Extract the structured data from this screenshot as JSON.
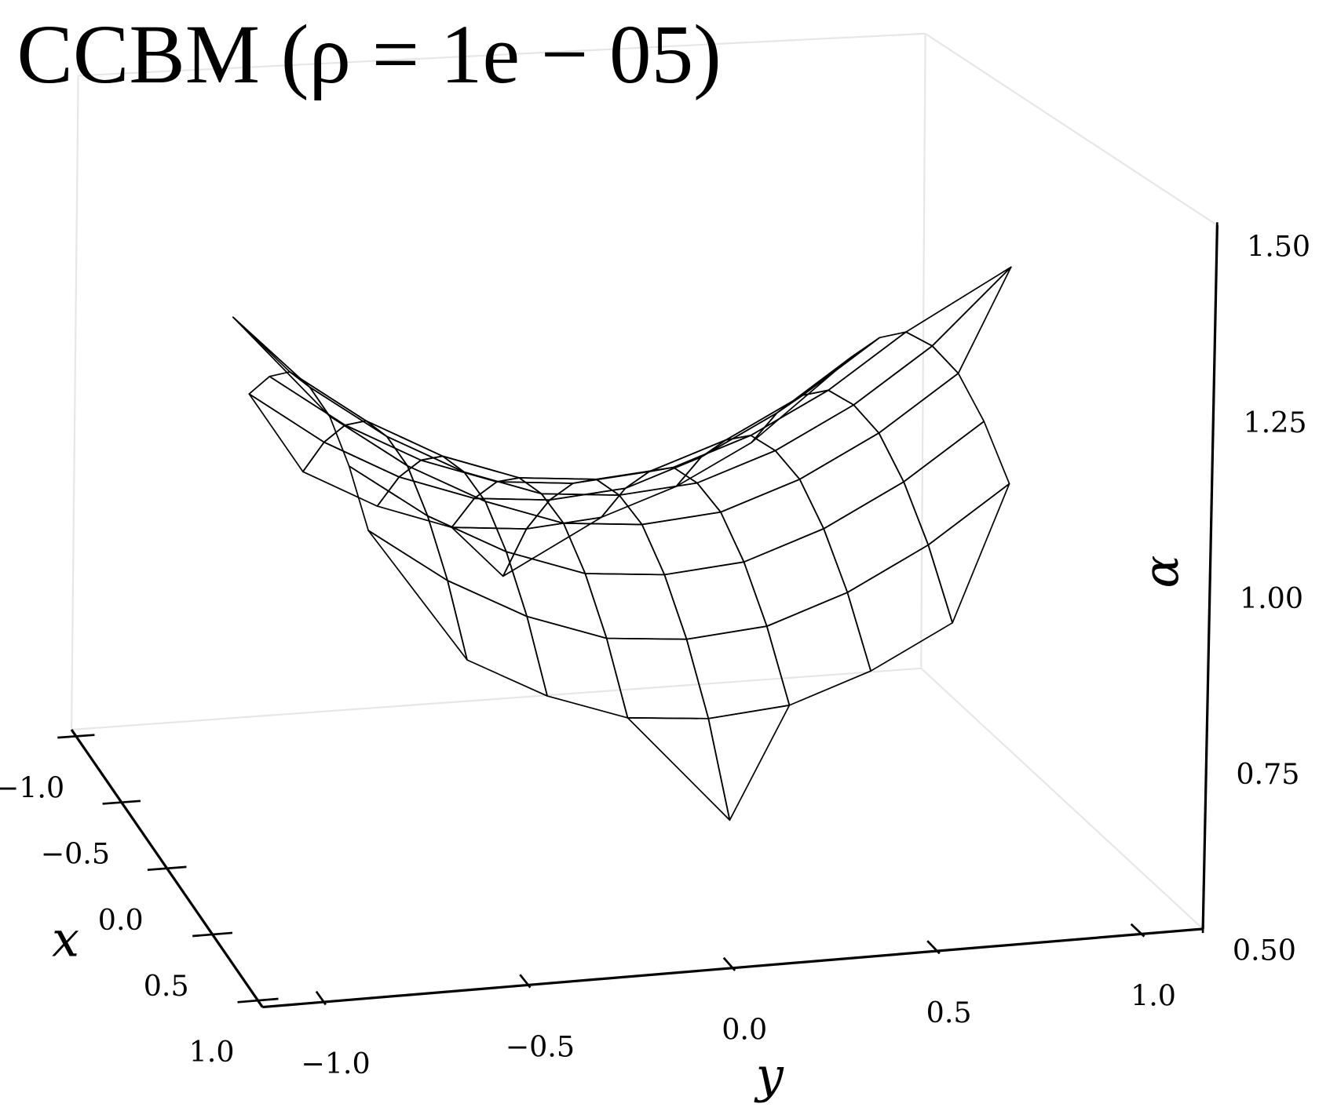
{
  "chart_data": {
    "type": "surface3d",
    "title": "CCBM (ρ = 1e − 05)",
    "x_label": "x",
    "y_label": "y",
    "z_label": "α",
    "xlim": [
      -1.05,
      1.05
    ],
    "ylim": [
      -1.15,
      1.15
    ],
    "zlim": [
      0.5,
      1.5
    ],
    "xticks": [
      {
        "value": -1,
        "label": "−1.0"
      },
      {
        "value": -0.5,
        "label": "−0.5"
      },
      {
        "value": 0,
        "label": "0.0"
      },
      0.5,
      {
        "value": 1,
        "label": "1.0"
      }
    ],
    "yticks": [
      {
        "value": -1,
        "label": "−1.0"
      },
      {
        "value": -0.5,
        "label": "−0.5"
      },
      {
        "value": 0,
        "label": "0.0"
      },
      0.5,
      {
        "value": 1,
        "label": "1.0"
      }
    ],
    "zticks": [
      {
        "value": 0.5,
        "label": "0.50"
      },
      0.75,
      {
        "value": 1,
        "label": "1.00"
      },
      1.25,
      {
        "value": 1.5,
        "label": "1.50"
      }
    ],
    "color": "#000000",
    "x": [
      -1,
      -0.8,
      -0.6,
      -0.4,
      -0.2,
      0,
      0.2,
      0.4,
      0.6,
      0.8,
      1
    ],
    "y": [
      -1,
      -0.8,
      -0.6,
      -0.4,
      -0.2,
      0,
      0.2,
      0.4,
      0.6,
      0.8,
      1
    ],
    "z": [
      [
        null,
        null,
        null,
        null,
        null,
        0.7,
        null,
        null,
        null,
        null,
        null
      ],
      [
        null,
        null,
        0.92,
        0.86,
        0.82,
        0.81,
        0.82,
        0.86,
        0.92,
        null,
        null
      ],
      [
        null,
        1.08,
        1,
        0.94,
        0.9,
        0.89,
        0.9,
        0.94,
        1,
        1.08,
        null
      ],
      [
        null,
        1.14,
        1.06,
        1,
        0.96,
        0.95,
        0.96,
        1,
        1.06,
        1.14,
        null
      ],
      [
        null,
        1.18,
        1.1,
        1.04,
        1,
        0.99,
        1,
        1.04,
        1.1,
        1.18,
        null
      ],
      [
        1.3,
        1.19,
        1.11,
        1.05,
        1.01,
        1,
        1.01,
        1.05,
        1.11,
        1.19,
        1.3
      ],
      [
        null,
        1.18,
        1.1,
        1.04,
        1,
        0.99,
        1,
        1.04,
        1.1,
        1.18,
        null
      ],
      [
        null,
        1.14,
        1.06,
        1,
        0.96,
        0.95,
        0.96,
        1,
        1.06,
        1.14,
        null
      ],
      [
        null,
        1.08,
        1,
        0.94,
        0.9,
        0.89,
        0.9,
        0.94,
        1,
        1.08,
        null
      ],
      [
        null,
        null,
        0.92,
        0.86,
        0.82,
        0.81,
        0.82,
        0.86,
        0.92,
        null,
        null
      ],
      [
        null,
        null,
        null,
        null,
        null,
        0.7,
        null,
        null,
        null,
        null,
        null
      ]
    ]
  }
}
